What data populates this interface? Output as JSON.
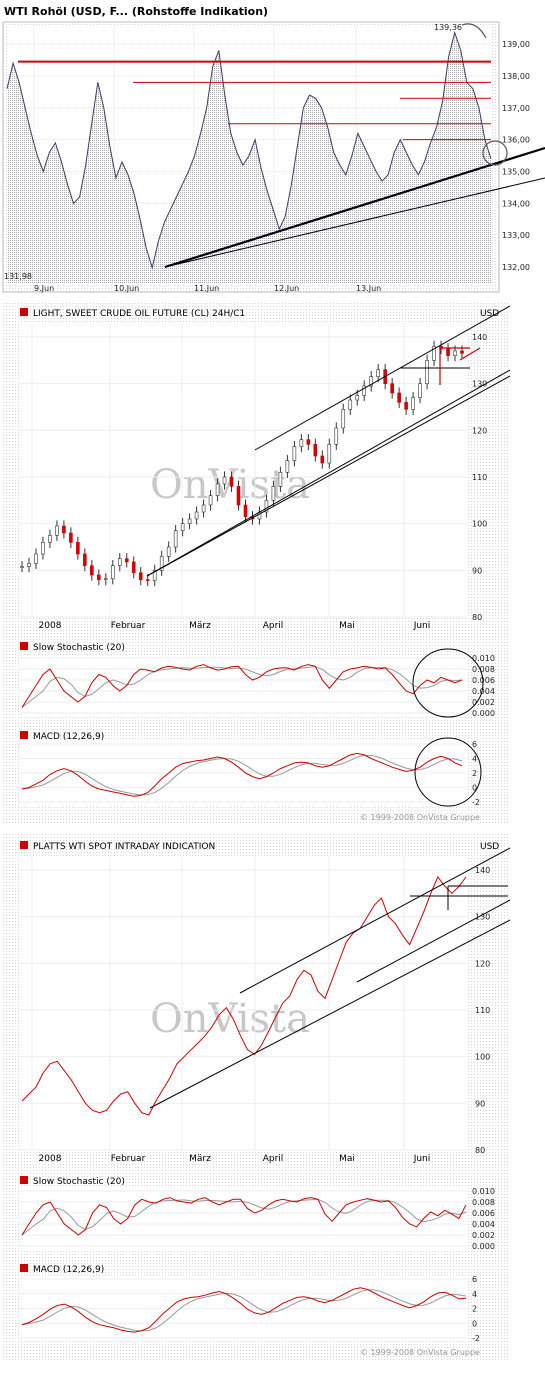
{
  "chart_data": [
    {
      "type": "area",
      "title": "WTI Rohöl (USD, F... (Rohstoffe Indikation)",
      "y_ticks": [
        "132,00",
        "133,00",
        "134,00",
        "135,00",
        "136,00",
        "137,00",
        "138,00",
        "139,00"
      ],
      "ylim": [
        131.5,
        139.6
      ],
      "x_ticks": [
        "9.Jun",
        "10.Jun",
        "11.Jun",
        "12.Jun",
        "13.Jun"
      ],
      "annotations": {
        "low_label": "131,98",
        "high_label": "139,36"
      },
      "low": 131.98,
      "high": 139.36,
      "resistance_levels": [
        138.45,
        137.8,
        137.3,
        136.5,
        136.0
      ],
      "values": [
        137.6,
        138.4,
        137.8,
        137.0,
        136.2,
        135.5,
        135.0,
        135.6,
        135.9,
        135.3,
        134.6,
        134.0,
        134.2,
        135.2,
        136.5,
        137.8,
        137.0,
        135.8,
        134.8,
        135.3,
        134.9,
        134.3,
        133.5,
        132.6,
        131.98,
        132.8,
        133.4,
        133.8,
        134.2,
        134.6,
        135.0,
        135.5,
        136.2,
        137.0,
        138.3,
        138.8,
        137.4,
        136.2,
        135.6,
        135.2,
        135.5,
        136.0,
        135.1,
        134.4,
        133.8,
        133.2,
        133.6,
        134.6,
        135.8,
        137.0,
        137.4,
        137.3,
        137.0,
        136.4,
        135.6,
        135.2,
        134.9,
        135.5,
        136.2,
        135.8,
        135.4,
        135.0,
        134.7,
        134.9,
        135.6,
        136.0,
        135.6,
        135.2,
        134.9,
        135.3,
        135.9,
        136.4,
        137.2,
        138.6,
        139.36,
        138.8,
        137.8,
        137.6,
        137.0,
        136.0,
        135.4
      ]
    },
    {
      "type": "bar",
      "title": "LIGHT, SWEET CRUDE OIL FUTURE (CL) 24H/C1",
      "unit": "USD",
      "y_ticks": [
        "80",
        "90",
        "100",
        "110",
        "120",
        "130",
        "140"
      ],
      "ylim": [
        80,
        143
      ],
      "x_ticks": [
        "2008",
        "Februar",
        "März",
        "April",
        "Mai",
        "Juni"
      ],
      "watermark": "OnVista",
      "values": [
        90.8,
        91.5,
        93.5,
        96.0,
        97.5,
        99.5,
        98.0,
        96.0,
        93.5,
        91.0,
        89.0,
        88.0,
        88.2,
        91.0,
        92.5,
        91.8,
        89.5,
        88.0,
        87.8,
        90.0,
        93.0,
        95.0,
        98.5,
        100.0,
        101.0,
        102.5,
        104.0,
        106.0,
        108.5,
        110.0,
        108.0,
        104.0,
        101.5,
        101.0,
        102.5,
        105.0,
        108.0,
        111.0,
        113.5,
        116.5,
        118.0,
        117.0,
        114.5,
        113.0,
        117.0,
        120.5,
        124.5,
        126.5,
        127.5,
        129.5,
        131.5,
        133.0,
        130.0,
        128.0,
        126.0,
        124.5,
        127.0,
        130.0,
        135.0,
        138.0,
        137.5,
        136.0,
        137.0,
        136.5
      ]
    },
    {
      "type": "line",
      "title": "Slow Stochastic (20)",
      "y_ticks": [
        "0.010",
        "0.008",
        "0.006",
        "0.004",
        "0.002",
        "0.000"
      ],
      "ylim": [
        0,
        0.01
      ],
      "values": [
        0.001,
        0.003,
        0.005,
        0.007,
        0.008,
        0.006,
        0.004,
        0.003,
        0.002,
        0.003,
        0.0055,
        0.007,
        0.0065,
        0.005,
        0.004,
        0.005,
        0.007,
        0.008,
        0.0078,
        0.0075,
        0.0082,
        0.0085,
        0.0083,
        0.008,
        0.0078,
        0.0085,
        0.0088,
        0.0082,
        0.0078,
        0.008,
        0.0084,
        0.0085,
        0.007,
        0.006,
        0.0065,
        0.0075,
        0.008,
        0.0082,
        0.0082,
        0.0078,
        0.0085,
        0.0088,
        0.0085,
        0.006,
        0.0045,
        0.006,
        0.0075,
        0.008,
        0.0082,
        0.0085,
        0.0083,
        0.008,
        0.0082,
        0.007,
        0.0055,
        0.004,
        0.0035,
        0.005,
        0.006,
        0.0055,
        0.0065,
        0.006,
        0.0055,
        0.006
      ]
    },
    {
      "type": "line",
      "title": "MACD (12,26,9)",
      "y_ticks": [
        "6",
        "4",
        "2",
        "0",
        "-2"
      ],
      "ylim": [
        -2,
        6
      ],
      "values": [
        -0.2,
        0.0,
        0.5,
        1.0,
        1.8,
        2.3,
        2.6,
        2.3,
        1.7,
        0.9,
        0.2,
        -0.2,
        -0.4,
        -0.6,
        -0.8,
        -1.0,
        -1.2,
        -1.1,
        -0.7,
        0.2,
        1.2,
        2.0,
        2.8,
        3.3,
        3.5,
        3.7,
        3.8,
        4.0,
        4.2,
        4.0,
        3.5,
        2.8,
        2.0,
        1.5,
        1.2,
        1.5,
        2.0,
        2.6,
        3.0,
        3.4,
        3.5,
        3.4,
        3.0,
        2.8,
        3.0,
        3.5,
        4.0,
        4.5,
        4.7,
        4.5,
        4.0,
        3.6,
        3.2,
        2.8,
        2.5,
        2.2,
        2.4,
        2.8,
        3.5,
        4.0,
        4.3,
        4.0,
        3.4,
        3.0
      ]
    },
    {
      "type": "line",
      "title": "PLATTS WTI SPOT INTRADAY INDICATION",
      "unit": "USD",
      "y_ticks": [
        "80",
        "90",
        "100",
        "110",
        "120",
        "130",
        "140"
      ],
      "ylim": [
        80,
        143
      ],
      "x_ticks": [
        "2008",
        "Februar",
        "März",
        "April",
        "Mai",
        "Juni"
      ],
      "watermark": "OnVista",
      "values": [
        90.5,
        92.0,
        93.5,
        96.5,
        98.5,
        99.0,
        97.0,
        95.0,
        92.5,
        90.0,
        88.5,
        88.0,
        88.5,
        90.5,
        92.0,
        92.5,
        90.0,
        88.0,
        87.5,
        90.5,
        93.0,
        95.5,
        98.5,
        100.0,
        101.5,
        103.0,
        104.5,
        106.5,
        109.0,
        110.5,
        108.0,
        104.5,
        101.5,
        100.5,
        102.5,
        105.5,
        108.5,
        111.5,
        113.0,
        116.5,
        118.5,
        117.5,
        114.0,
        112.5,
        116.5,
        120.5,
        124.5,
        126.5,
        127.5,
        130.0,
        132.5,
        134.0,
        130.0,
        128.5,
        126.0,
        124.0,
        127.5,
        131.0,
        135.0,
        138.5,
        136.5,
        135.0,
        136.5,
        138.5
      ]
    },
    {
      "type": "line",
      "title": "Slow Stochastic (20)",
      "y_ticks": [
        "0.010",
        "0.008",
        "0.006",
        "0.004",
        "0.002",
        "0.000"
      ],
      "ylim": [
        0,
        0.01
      ],
      "values": [
        0.002,
        0.004,
        0.006,
        0.0075,
        0.008,
        0.006,
        0.004,
        0.003,
        0.002,
        0.003,
        0.006,
        0.0075,
        0.007,
        0.005,
        0.004,
        0.005,
        0.0075,
        0.0085,
        0.008,
        0.0078,
        0.0085,
        0.0088,
        0.0082,
        0.008,
        0.0078,
        0.0085,
        0.0088,
        0.008,
        0.0075,
        0.008,
        0.0085,
        0.0085,
        0.0068,
        0.006,
        0.0065,
        0.0075,
        0.0082,
        0.0085,
        0.0082,
        0.008,
        0.0086,
        0.0088,
        0.0085,
        0.0058,
        0.0045,
        0.006,
        0.0075,
        0.008,
        0.0083,
        0.0086,
        0.0083,
        0.008,
        0.0082,
        0.007,
        0.0052,
        0.004,
        0.0035,
        0.005,
        0.0062,
        0.0055,
        0.0065,
        0.0058,
        0.005,
        0.0075
      ]
    },
    {
      "type": "line",
      "title": "MACD (12,26,9)",
      "y_ticks": [
        "6",
        "4",
        "2",
        "0",
        "-2"
      ],
      "ylim": [
        -2,
        6
      ],
      "values": [
        -0.2,
        0.1,
        0.6,
        1.2,
        1.9,
        2.4,
        2.6,
        2.2,
        1.6,
        0.8,
        0.2,
        -0.2,
        -0.4,
        -0.6,
        -0.9,
        -1.1,
        -1.2,
        -1.0,
        -0.6,
        0.3,
        1.3,
        2.1,
        2.9,
        3.3,
        3.5,
        3.6,
        3.8,
        4.1,
        4.3,
        4.0,
        3.4,
        2.7,
        1.9,
        1.4,
        1.2,
        1.5,
        2.1,
        2.7,
        3.1,
        3.5,
        3.6,
        3.4,
        3.0,
        2.8,
        3.1,
        3.6,
        4.1,
        4.6,
        4.8,
        4.6,
        4.1,
        3.6,
        3.2,
        2.8,
        2.4,
        2.1,
        2.4,
        2.9,
        3.6,
        4.1,
        4.2,
        3.8,
        3.3,
        3.4
      ]
    }
  ],
  "copyright": "© 1999-2008 OnVista Gruppe"
}
